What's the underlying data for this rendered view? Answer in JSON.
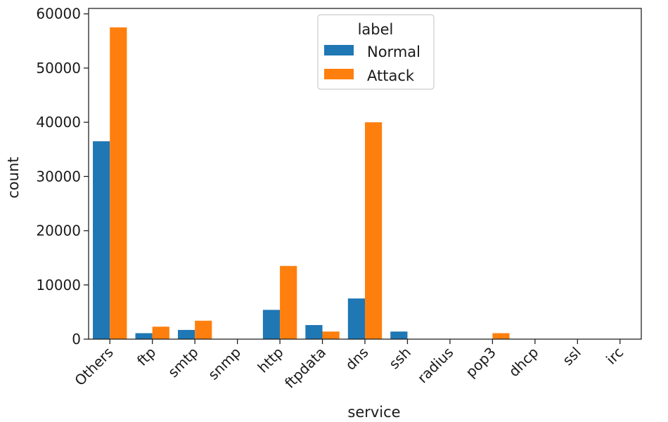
{
  "chart_data": {
    "type": "bar",
    "xlabel": "service",
    "ylabel": "count",
    "ylim": [
      0,
      61000
    ],
    "yticks": [
      0,
      10000,
      20000,
      30000,
      40000,
      50000,
      60000
    ],
    "categories": [
      "Others",
      "ftp",
      "smtp",
      "snmp",
      "http",
      "ftpdata",
      "dns",
      "ssh",
      "radius",
      "pop3",
      "dhcp",
      "ssl",
      "irc"
    ],
    "series": [
      {
        "name": "Normal",
        "color": "#1f77b4",
        "values": [
          36500,
          1100,
          1700,
          0,
          5400,
          2600,
          7500,
          1400,
          0,
          0,
          0,
          0,
          0
        ]
      },
      {
        "name": "Attack",
        "color": "#ff7f0e",
        "values": [
          57500,
          2300,
          3400,
          0,
          13500,
          1400,
          40000,
          0,
          0,
          1100,
          0,
          0,
          0
        ]
      }
    ],
    "legend": {
      "title": "label",
      "position": "top-center"
    },
    "grid": false
  }
}
